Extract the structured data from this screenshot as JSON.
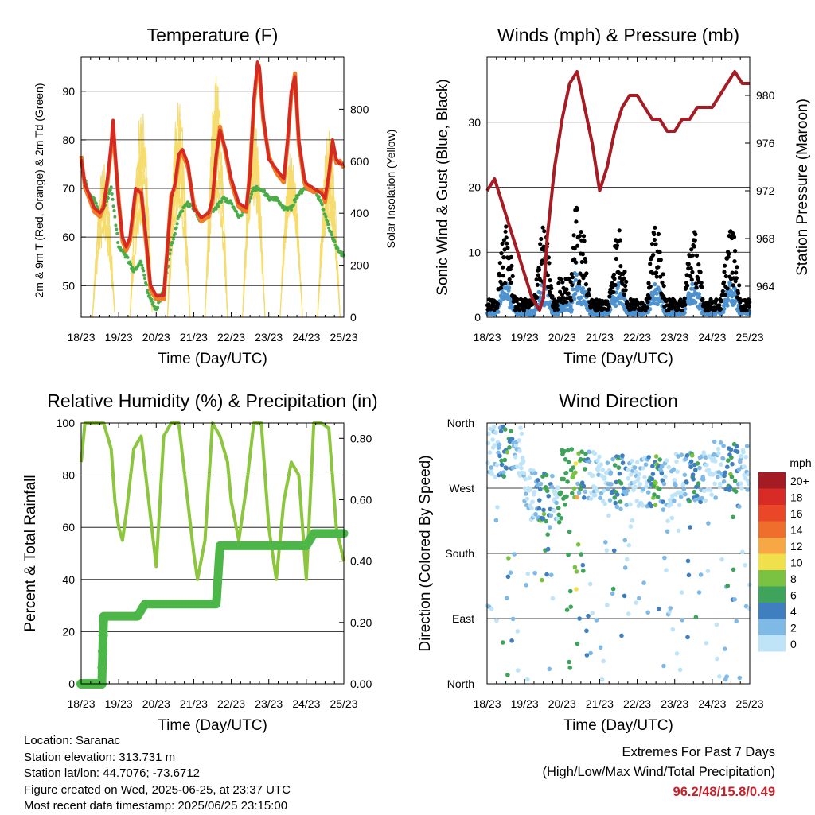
{
  "info": {
    "location": "Location: Saranac",
    "elevation": "Station elevation: 313.731 m",
    "latlon": "Station lat/lon: 44.7076; -73.6712",
    "created": "Figure created on Wed, 2025-06-25, at 23:37 UTC",
    "recent": "Most recent data timestamp: 2025/06/25 23:15:00"
  },
  "extremes": {
    "title": "Extremes For Past 7 Days",
    "subtitle": "(High/Low/Max Wind/Total Precipitation)",
    "values": "96.2/48/15.8/0.49"
  },
  "colors": {
    "temp_2m": "#d52a22",
    "temp_9m": "#f07c28",
    "dewpoint": "#4aad48",
    "insolation": "#f6dc6e",
    "wind": "#4e93cf",
    "gust": "#000000",
    "pressure": "#a51c24",
    "rh": "#8cc63f",
    "precip": "#4cb748"
  },
  "speed_legend": {
    "title": "mph",
    "labels": [
      "20+",
      "18",
      "16",
      "14",
      "12",
      "10",
      "8",
      "6",
      "4",
      "2",
      "0"
    ],
    "colors": [
      "#a51b24",
      "#d92b25",
      "#ea4729",
      "#f06e2b",
      "#f7a845",
      "#f0e04c",
      "#7cc242",
      "#3ea35b",
      "#3f7fbf",
      "#7fb9e6",
      "#bfe4f8"
    ]
  },
  "chart_data": [
    {
      "type": "line",
      "title": "Temperature (F)",
      "xlabel": "Time (Day/UTC)",
      "ylabel": "2m & 9m T (Red, Orange) & 2m Td (Green)",
      "y2label": "Solar Insolation (Yellow)",
      "x_ticks": [
        "18/23",
        "19/23",
        "20/23",
        "21/23",
        "22/23",
        "23/23",
        "24/23",
        "25/23"
      ],
      "ylim": [
        43.5,
        97
      ],
      "y_ticks": [
        50,
        60,
        70,
        80,
        90
      ],
      "y2lim": [
        0,
        1000
      ],
      "y2_ticks": [
        0,
        200,
        400,
        600,
        800
      ],
      "grid": true,
      "series": [
        {
          "role": "temp_2m",
          "x": [
            0,
            0.1,
            0.2,
            0.35,
            0.5,
            0.6,
            0.7,
            0.8,
            0.85,
            0.9,
            1.0,
            1.1,
            1.2,
            1.3,
            1.45,
            1.6,
            1.7,
            1.85,
            2.0,
            2.2,
            2.4,
            2.5,
            2.6,
            2.7,
            2.85,
            3.0,
            3.2,
            3.4,
            3.5,
            3.6,
            3.7,
            3.85,
            4.0,
            4.2,
            4.4,
            4.5,
            4.6,
            4.7,
            4.75,
            4.85,
            5.0,
            5.2,
            5.4,
            5.5,
            5.6,
            5.7,
            5.8,
            5.95,
            6.0,
            6.2,
            6.4,
            6.5,
            6.6,
            6.7,
            6.8,
            6.9,
            7.0
          ],
          "y": [
            76,
            71,
            69,
            66,
            65,
            66,
            72,
            79,
            84,
            78,
            67,
            60,
            58,
            60,
            70,
            69,
            62,
            50,
            48,
            48,
            68,
            71,
            77,
            78,
            75,
            66,
            64,
            65,
            68,
            77,
            82,
            78,
            72,
            67,
            66,
            73,
            88,
            96,
            95,
            85,
            76,
            74,
            72,
            80,
            90,
            93,
            80,
            72,
            71,
            70,
            69,
            68,
            73,
            80,
            76,
            75,
            75
          ]
        },
        {
          "role": "dewpoint",
          "x": [
            0,
            0.2,
            0.4,
            0.5,
            0.6,
            0.8,
            1.0,
            1.2,
            1.4,
            1.6,
            1.8,
            2.0,
            2.2,
            2.4,
            2.6,
            2.8,
            3.0,
            3.2,
            3.4,
            3.6,
            3.8,
            4.0,
            4.2,
            4.4,
            4.6,
            4.8,
            5.0,
            5.2,
            5.4,
            5.6,
            5.8,
            6.0,
            6.2,
            6.4,
            6.6,
            6.8,
            7.0
          ],
          "y": [
            75,
            69,
            67,
            64,
            66,
            70,
            58,
            56,
            53,
            55,
            48,
            45,
            49,
            58,
            64,
            67,
            66,
            63,
            65,
            66,
            68,
            67,
            64,
            66,
            70,
            70,
            68,
            68,
            66,
            66,
            69,
            70,
            70,
            67,
            62,
            58,
            56
          ]
        }
      ],
      "insolation_days": [
        0.6,
        1.6,
        2.6,
        3.6,
        4.6,
        5.6,
        6.6
      ],
      "insolation_peaks": [
        650,
        850,
        920,
        960,
        980,
        700,
        850
      ]
    },
    {
      "type": "scatter",
      "title": "Winds (mph) & Pressure (mb)",
      "xlabel": "Time (Day/UTC)",
      "ylabel": "Sonic Wind & Gust (Blue, Black)",
      "y2label": "Station Pressure (Maroon)",
      "x_ticks": [
        "18/23",
        "19/23",
        "20/23",
        "21/23",
        "22/23",
        "23/23",
        "24/23",
        "25/23"
      ],
      "ylim": [
        0,
        40
      ],
      "y_ticks": [
        0,
        10,
        20,
        30
      ],
      "y2lim": [
        961.4,
        983.2
      ],
      "y2_ticks": [
        964,
        968,
        972,
        976,
        980
      ],
      "grid": true,
      "pressure": {
        "x": [
          0,
          0.2,
          0.4,
          0.6,
          0.8,
          1.0,
          1.2,
          1.4,
          1.5,
          1.6,
          1.8,
          2.0,
          2.2,
          2.4,
          2.6,
          2.8,
          3.0,
          3.2,
          3.4,
          3.6,
          3.8,
          4.0,
          4.2,
          4.4,
          4.6,
          4.8,
          5.0,
          5.2,
          5.4,
          5.6,
          5.8,
          6.0,
          6.2,
          6.4,
          6.6,
          6.8,
          7.0
        ],
        "y": [
          972,
          973,
          971,
          969,
          967,
          965,
          963,
          962,
          963,
          968,
          974,
          978,
          981,
          982,
          979,
          976,
          972,
          974,
          977,
          979,
          980,
          980,
          979,
          978,
          978,
          977,
          977,
          978,
          978,
          979,
          979,
          979,
          980,
          981,
          982,
          981,
          981
        ]
      }
    },
    {
      "type": "line",
      "title": "Relative Humidity (%) & Precipitation (in)",
      "xlabel": "Time (Day/UTC)",
      "ylabel": "Percent & Total Rainfall",
      "x_ticks": [
        "18/23",
        "19/23",
        "20/23",
        "21/23",
        "22/23",
        "23/23",
        "24/23",
        "25/23"
      ],
      "ylim": [
        0,
        100
      ],
      "y_ticks": [
        0,
        20,
        40,
        60,
        80,
        100
      ],
      "y2lim": [
        0,
        0.85
      ],
      "y2_ticks": [
        "0.00",
        "0.20",
        "0.40",
        "0.60",
        "0.80"
      ],
      "grid": true,
      "series": [
        {
          "role": "rh",
          "x": [
            0,
            0.1,
            0.3,
            0.6,
            0.8,
            0.9,
            1.0,
            1.1,
            1.2,
            1.4,
            1.6,
            1.8,
            2.0,
            2.2,
            2.4,
            2.6,
            2.8,
            3.0,
            3.1,
            3.3,
            3.5,
            3.7,
            3.9,
            4.0,
            4.2,
            4.4,
            4.6,
            4.8,
            5.0,
            5.2,
            5.4,
            5.6,
            5.8,
            6.0,
            6.2,
            6.4,
            6.6,
            6.8,
            7.0
          ],
          "y": [
            85,
            100,
            100,
            100,
            90,
            70,
            60,
            55,
            65,
            90,
            95,
            70,
            45,
            95,
            100,
            100,
            75,
            50,
            40,
            55,
            100,
            95,
            85,
            70,
            55,
            75,
            100,
            100,
            60,
            40,
            70,
            85,
            80,
            40,
            100,
            100,
            98,
            60,
            47
          ]
        },
        {
          "role": "precip",
          "x": [
            0,
            0.55,
            0.6,
            1.5,
            1.7,
            3.6,
            3.7,
            4.5,
            6.0,
            6.2,
            7.0
          ],
          "y": [
            0,
            0,
            0.22,
            0.22,
            0.26,
            0.26,
            0.45,
            0.45,
            0.45,
            0.49,
            0.49
          ]
        }
      ]
    },
    {
      "type": "scatter",
      "title": "Wind Direction",
      "xlabel": "Time (Day/UTC)",
      "ylabel": "Direction (Colored By Speed)",
      "x_ticks": [
        "18/23",
        "19/23",
        "20/23",
        "21/23",
        "22/23",
        "23/23",
        "24/23",
        "25/23"
      ],
      "y_ticks": [
        "North",
        "East",
        "South",
        "West",
        "North"
      ],
      "ylim": [
        0,
        360
      ],
      "grid": true
    }
  ]
}
